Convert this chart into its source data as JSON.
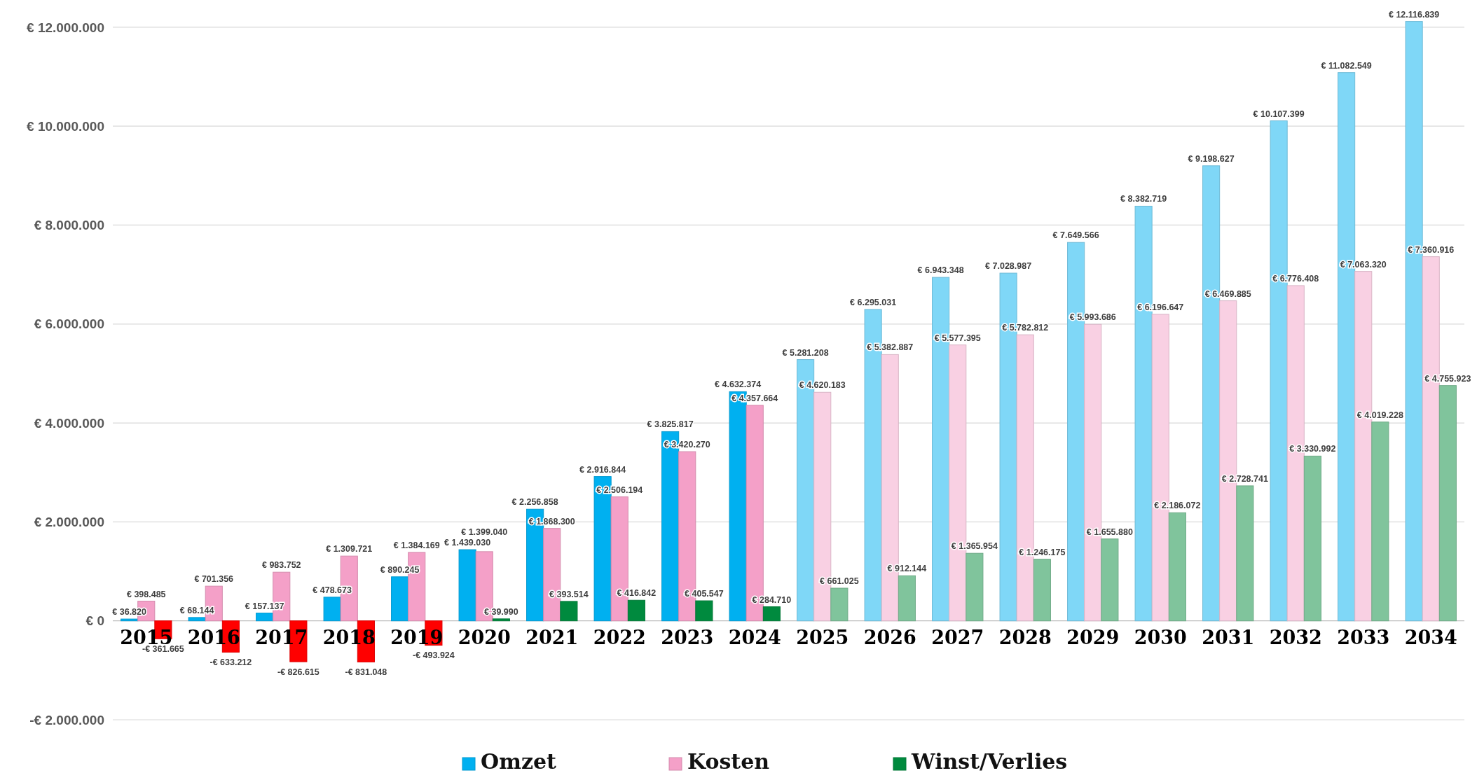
{
  "chart_data": {
    "type": "bar",
    "categories": [
      "2015",
      "2016",
      "2017",
      "2018",
      "2019",
      "2020",
      "2021",
      "2022",
      "2023",
      "2024",
      "2025",
      "2026",
      "2027",
      "2028",
      "2029",
      "2030",
      "2031",
      "2032",
      "2033",
      "2034"
    ],
    "series": [
      {
        "name": "Omzet",
        "color": "#00b0f0",
        "colors": [
          "#00b0f0",
          "#00b0f0",
          "#00b0f0",
          "#00b0f0",
          "#00b0f0",
          "#00b0f0",
          "#00b0f0",
          "#00b0f0",
          "#00b0f0",
          "#00b0f0",
          "#7fd7f7",
          "#7fd7f7",
          "#7fd7f7",
          "#7fd7f7",
          "#7fd7f7",
          "#7fd7f7",
          "#7fd7f7",
          "#7fd7f7",
          "#7fd7f7",
          "#7fd7f7"
        ],
        "values": [
          36820,
          68144,
          157137,
          478673,
          890245,
          1439030,
          2256858,
          2916844,
          3825817,
          4632374,
          5281208,
          6295031,
          6943348,
          7028987,
          7649566,
          8382719,
          9198627,
          10107399,
          11082549,
          12116839
        ],
        "value_labels": [
          "€ 36.820",
          "€ 68.144",
          "€ 157.137",
          "€ 478.673",
          "€ 890.245",
          "€ 1.439.030",
          "€ 2.256.858",
          "€ 2.916.844",
          "€ 3.825.817",
          "€ 4.632.374",
          "€ 5.281.208",
          "€ 6.295.031",
          "€ 6.943.348",
          "€ 7.028.987",
          "€ 7.649.566",
          "€ 8.382.719",
          "€ 9.198.627",
          "€ 10.107.399",
          "€ 11.082.549",
          "€ 12.116.839"
        ]
      },
      {
        "name": "Kosten",
        "color": "#f4a0c8",
        "colors": [
          "#f4a0c8",
          "#f4a0c8",
          "#f4a0c8",
          "#f4a0c8",
          "#f4a0c8",
          "#f4a0c8",
          "#f4a0c8",
          "#f4a0c8",
          "#f4a0c8",
          "#f4a0c8",
          "#f9d0e3",
          "#f9d0e3",
          "#f9d0e3",
          "#f9d0e3",
          "#f9d0e3",
          "#f9d0e3",
          "#f9d0e3",
          "#f9d0e3",
          "#f9d0e3",
          "#f9d0e3"
        ],
        "values": [
          398485,
          701356,
          983752,
          1309721,
          1384169,
          1399040,
          1868300,
          2506194,
          3420270,
          4357664,
          4620183,
          5382887,
          5577395,
          5782812,
          5993686,
          6196647,
          6469885,
          6776408,
          7063320,
          7360916
        ],
        "value_labels": [
          "€ 398.485",
          "€ 701.356",
          "€ 983.752",
          "€ 1.309.721",
          "€ 1.384.169",
          "€ 1.399.040",
          "€ 1.868.300",
          "€ 2.506.194",
          "€ 3.420.270",
          "€ 4.357.664",
          "€ 4.620.183",
          "€ 5.382.887",
          "€ 5.577.395",
          "€ 5.782.812",
          "€ 5.993.686",
          "€ 6.196.647",
          "€ 6.469.885",
          "€ 6.776.408",
          "€ 7.063.320",
          "€ 7.360.916"
        ]
      },
      {
        "name": "Winst/Verlies",
        "color": "#008a3e",
        "colors": [
          "#ff0000",
          "#ff0000",
          "#ff0000",
          "#ff0000",
          "#ff0000",
          "#008a3e",
          "#008a3e",
          "#008a3e",
          "#008a3e",
          "#008a3e",
          "#80c49c",
          "#80c49c",
          "#80c49c",
          "#80c49c",
          "#80c49c",
          "#80c49c",
          "#80c49c",
          "#80c49c",
          "#80c49c",
          "#80c49c"
        ],
        "values": [
          -361665,
          -633212,
          -826615,
          -831048,
          -493924,
          39990,
          393514,
          416842,
          405547,
          284710,
          661025,
          912144,
          1365954,
          1246175,
          1655880,
          2186072,
          2728741,
          3330992,
          4019228,
          4755923
        ],
        "value_labels": [
          "-€ 361.665",
          "-€ 633.212",
          "-€ 826.615",
          "-€ 831.048",
          "-€ 493.924",
          "€ 39.990",
          "€ 393.514",
          "€ 416.842",
          "€ 405.547",
          "€ 284.710",
          "€ 661.025",
          "€ 912.144",
          "€ 1.365.954",
          "€ 1.246.175",
          "€ 1.655.880",
          "€ 2.186.072",
          "€ 2.728.741",
          "€ 3.330.992",
          "€ 4.019.228",
          "€ 4.755.923"
        ]
      }
    ],
    "ylim": [
      -2000000,
      12550000
    ],
    "yticks": [
      {
        "value": -2000000,
        "label": "-€ 2.000.000"
      },
      {
        "value": 0,
        "label": "€ 0"
      },
      {
        "value": 2000000,
        "label": "€ 2.000.000"
      },
      {
        "value": 4000000,
        "label": "€ 4.000.000"
      },
      {
        "value": 6000000,
        "label": "€ 6.000.000"
      },
      {
        "value": 8000000,
        "label": "€ 8.000.000"
      },
      {
        "value": 10000000,
        "label": "€ 10.000.000"
      },
      {
        "value": 12000000,
        "label": "€ 12.000.000"
      }
    ],
    "grid": "y",
    "legend": "bottom"
  }
}
